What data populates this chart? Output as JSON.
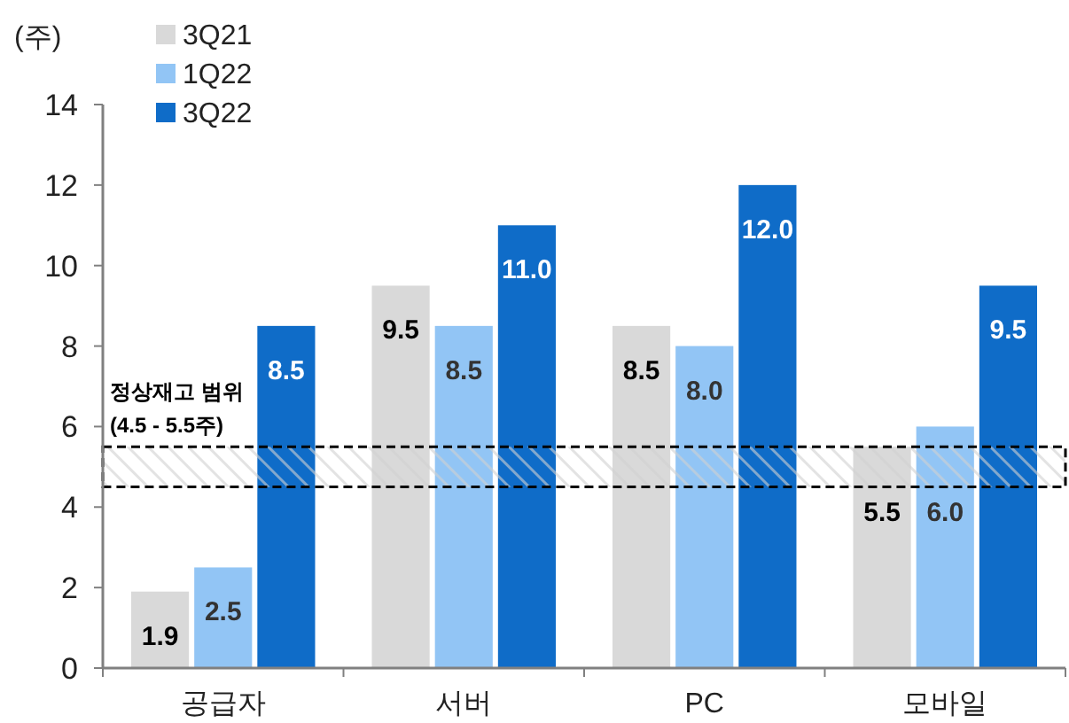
{
  "chart_data": {
    "type": "bar",
    "ylabel": "(주)",
    "categories": [
      "공급자",
      "서버",
      "PC",
      "모바일"
    ],
    "series": [
      {
        "name": "3Q21",
        "color": "#d9d9d9",
        "values": [
          1.9,
          9.5,
          8.5,
          5.5
        ],
        "value_labels": [
          "1.9",
          "9.5",
          "8.5",
          "5.5"
        ]
      },
      {
        "name": "1Q22",
        "color": "#92c5f5",
        "values": [
          2.5,
          8.5,
          8.0,
          6.0
        ],
        "value_labels": [
          "2.5",
          "8.5",
          "8.0",
          "6.0"
        ]
      },
      {
        "name": "3Q22",
        "color": "#0f6cc8",
        "values": [
          8.5,
          11.0,
          12.0,
          9.5
        ],
        "value_labels": [
          "8.5",
          "11.0",
          "12.0",
          "9.5"
        ]
      }
    ],
    "ylim": [
      0,
      14
    ],
    "yticks": [
      0,
      2,
      4,
      6,
      8,
      10,
      12,
      14
    ],
    "grid": false,
    "legend": "top left",
    "bands": [
      {
        "axis": "y",
        "from": 4.5,
        "to": 5.5,
        "label": "정상재고 범위\n(4.5 - 5.5주)"
      }
    ]
  }
}
